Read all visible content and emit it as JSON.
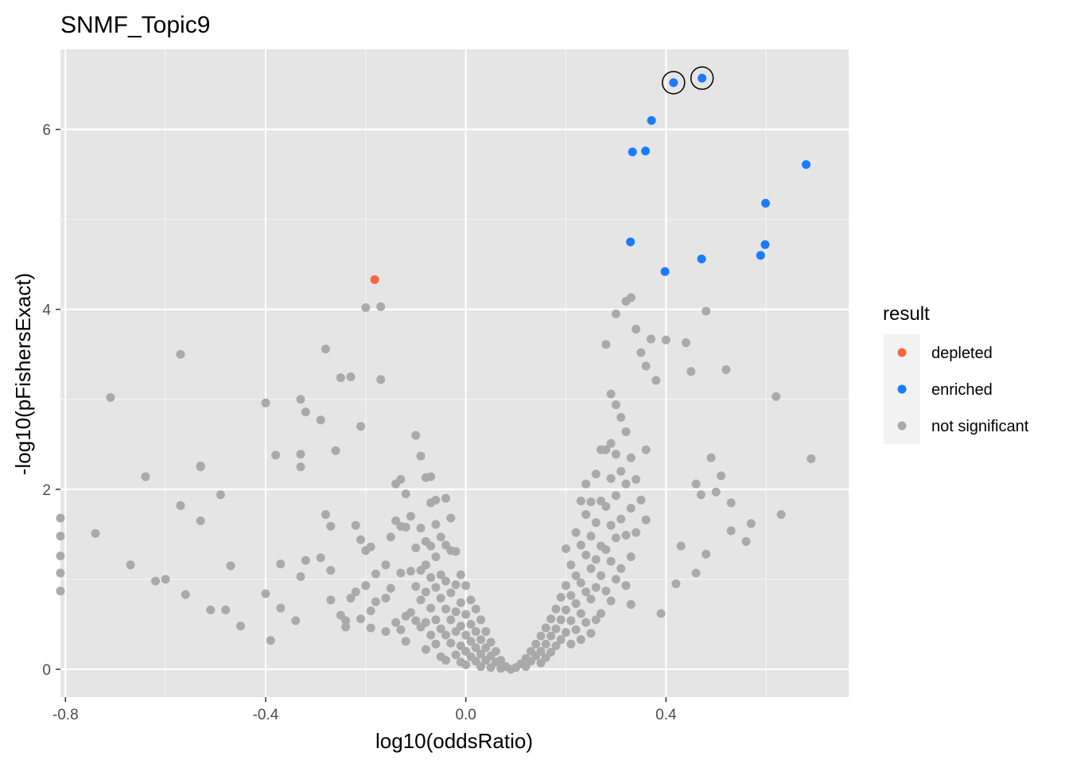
{
  "chart_data": {
    "type": "scatter",
    "title": "SNMF_Topic9",
    "xlabel": "log10(oddsRatio)",
    "ylabel": "-log10(pFishersExact)",
    "xlim": [
      -0.81,
      0.765
    ],
    "ylim": [
      -0.31,
      6.89
    ],
    "x_ticks": [
      -0.8,
      -0.4,
      0.0,
      0.4
    ],
    "x_tick_labels": [
      "-0.8",
      "-0.4",
      "0.0",
      "0.4"
    ],
    "y_ticks": [
      0,
      2,
      4,
      6
    ],
    "y_tick_labels": [
      "0",
      "2",
      "4",
      "6"
    ],
    "grid": true,
    "panel_background": "#e5e5e5",
    "legend": {
      "title": "result",
      "placement": "right",
      "entries": [
        {
          "label": "depleted",
          "color": "#f8663f"
        },
        {
          "label": "enriched",
          "color": "#1a7bff"
        },
        {
          "label": "not significant",
          "color": "#aaaaaa"
        }
      ]
    },
    "series": [
      {
        "name": "not significant",
        "color": "#aaaaaa",
        "points": [
          [
            -0.71,
            3.02
          ],
          [
            -0.57,
            3.5
          ],
          [
            -0.64,
            2.14
          ],
          [
            -0.57,
            1.82
          ],
          [
            -0.74,
            1.51
          ],
          [
            -0.67,
            1.16
          ],
          [
            -0.62,
            0.98
          ],
          [
            -0.6,
            1.0
          ],
          [
            -0.56,
            0.83
          ],
          [
            -0.53,
            2.25
          ],
          [
            -0.53,
            2.26
          ],
          [
            -0.53,
            1.65
          ],
          [
            -0.51,
            0.66
          ],
          [
            -0.48,
            0.66
          ],
          [
            -0.49,
            1.94
          ],
          [
            -0.47,
            1.15
          ],
          [
            -0.45,
            0.48
          ],
          [
            -0.4,
            2.96
          ],
          [
            -0.4,
            0.84
          ],
          [
            -0.39,
            0.32
          ],
          [
            -0.38,
            2.38
          ],
          [
            -0.37,
            1.17
          ],
          [
            -0.37,
            0.68
          ],
          [
            -0.34,
            0.54
          ],
          [
            -0.33,
            2.25
          ],
          [
            -0.33,
            2.39
          ],
          [
            -0.33,
            1.03
          ],
          [
            -0.33,
            3.0
          ],
          [
            -0.32,
            2.86
          ],
          [
            -0.32,
            1.21
          ],
          [
            -0.29,
            2.77
          ],
          [
            -0.29,
            1.24
          ],
          [
            -0.28,
            1.72
          ],
          [
            -0.28,
            3.56
          ],
          [
            -0.27,
            1.59
          ],
          [
            -0.27,
            1.1
          ],
          [
            -0.27,
            0.77
          ],
          [
            -0.26,
            2.43
          ],
          [
            -0.25,
            3.24
          ],
          [
            -0.25,
            0.6
          ],
          [
            -0.24,
            0.54
          ],
          [
            -0.24,
            0.47
          ],
          [
            -0.23,
            3.25
          ],
          [
            -0.23,
            0.79
          ],
          [
            -0.22,
            0.86
          ],
          [
            -0.22,
            1.6
          ],
          [
            -0.21,
            2.7
          ],
          [
            -0.21,
            1.44
          ],
          [
            -0.21,
            0.56
          ],
          [
            -0.2,
            4.02
          ],
          [
            -0.2,
            0.93
          ],
          [
            -0.2,
            1.32
          ],
          [
            -0.19,
            1.36
          ],
          [
            -0.19,
            0.65
          ],
          [
            -0.19,
            0.46
          ],
          [
            -0.18,
            1.06
          ],
          [
            -0.18,
            0.75
          ],
          [
            -0.17,
            4.03
          ],
          [
            -0.17,
            3.22
          ],
          [
            -0.16,
            1.16
          ],
          [
            -0.16,
            0.79
          ],
          [
            -0.16,
            0.42
          ],
          [
            -0.15,
            1.47
          ],
          [
            -0.15,
            0.9
          ],
          [
            -0.14,
            2.06
          ],
          [
            -0.14,
            1.65
          ],
          [
            -0.14,
            0.52
          ],
          [
            -0.13,
            2.11
          ],
          [
            -0.13,
            1.59
          ],
          [
            -0.13,
            1.07
          ],
          [
            -0.13,
            0.44
          ],
          [
            -0.12,
            1.95
          ],
          [
            -0.12,
            1.58
          ],
          [
            -0.12,
            0.59
          ],
          [
            -0.12,
            0.31
          ],
          [
            -0.11,
            1.7
          ],
          [
            -0.11,
            1.09
          ],
          [
            -0.11,
            0.63
          ],
          [
            -0.1,
            2.6
          ],
          [
            -0.1,
            1.35
          ],
          [
            -0.1,
            0.92
          ],
          [
            -0.1,
            0.54
          ],
          [
            -0.09,
            2.37
          ],
          [
            -0.09,
            1.57
          ],
          [
            -0.09,
            1.1
          ],
          [
            -0.09,
            0.77
          ],
          [
            -0.09,
            0.47
          ],
          [
            -0.08,
            2.13
          ],
          [
            -0.08,
            1.42
          ],
          [
            -0.08,
            1.16
          ],
          [
            -0.08,
            0.86
          ],
          [
            -0.08,
            0.52
          ],
          [
            -0.08,
            0.22
          ],
          [
            -0.07,
            2.14
          ],
          [
            -0.07,
            1.85
          ],
          [
            -0.07,
            1.37
          ],
          [
            -0.07,
            1.02
          ],
          [
            -0.07,
            0.68
          ],
          [
            -0.07,
            0.38
          ],
          [
            -0.06,
            1.88
          ],
          [
            -0.06,
            1.61
          ],
          [
            -0.06,
            1.25
          ],
          [
            -0.06,
            0.91
          ],
          [
            -0.06,
            0.55
          ],
          [
            -0.06,
            0.28
          ],
          [
            -0.05,
            1.47
          ],
          [
            -0.05,
            1.05
          ],
          [
            -0.05,
            0.79
          ],
          [
            -0.05,
            0.45
          ],
          [
            -0.05,
            0.14
          ],
          [
            -0.04,
            1.9
          ],
          [
            -0.04,
            1.38
          ],
          [
            -0.04,
            0.98
          ],
          [
            -0.04,
            0.67
          ],
          [
            -0.04,
            0.38
          ],
          [
            -0.04,
            0.1
          ],
          [
            -0.03,
            1.68
          ],
          [
            -0.03,
            1.32
          ],
          [
            -0.03,
            0.85
          ],
          [
            -0.03,
            0.55
          ],
          [
            -0.03,
            0.29
          ],
          [
            -0.02,
            1.31
          ],
          [
            -0.02,
            0.94
          ],
          [
            -0.02,
            0.64
          ],
          [
            -0.02,
            0.42
          ],
          [
            -0.02,
            0.16
          ],
          [
            -0.01,
            1.05
          ],
          [
            -0.01,
            0.74
          ],
          [
            -0.01,
            0.48
          ],
          [
            -0.01,
            0.26
          ],
          [
            -0.01,
            0.08
          ],
          [
            0.0,
            0.93
          ],
          [
            0.0,
            0.61
          ],
          [
            0.0,
            0.38
          ],
          [
            0.0,
            0.2
          ],
          [
            0.0,
            0.05
          ],
          [
            0.01,
            0.77
          ],
          [
            0.01,
            0.5
          ],
          [
            0.01,
            0.31
          ],
          [
            0.01,
            0.14
          ],
          [
            0.02,
            0.67
          ],
          [
            0.02,
            0.42
          ],
          [
            0.02,
            0.24
          ],
          [
            0.02,
            0.09
          ],
          [
            0.03,
            0.55
          ],
          [
            0.03,
            0.33
          ],
          [
            0.03,
            0.17
          ],
          [
            0.03,
            0.03
          ],
          [
            0.04,
            0.42
          ],
          [
            0.04,
            0.24
          ],
          [
            0.04,
            0.1
          ],
          [
            0.05,
            0.3
          ],
          [
            0.05,
            0.15
          ],
          [
            0.05,
            0.02
          ],
          [
            0.06,
            0.2
          ],
          [
            0.06,
            0.08
          ],
          [
            0.07,
            0.1
          ],
          [
            0.07,
            0.01
          ],
          [
            0.08,
            0.03
          ],
          [
            0.09,
            0.0
          ],
          [
            0.1,
            0.02
          ],
          [
            0.11,
            0.06
          ],
          [
            0.12,
            0.12
          ],
          [
            0.12,
            0.03
          ],
          [
            0.13,
            0.2
          ],
          [
            0.13,
            0.09
          ],
          [
            0.14,
            0.28
          ],
          [
            0.14,
            0.15
          ],
          [
            0.15,
            0.37
          ],
          [
            0.15,
            0.2
          ],
          [
            0.15,
            0.07
          ],
          [
            0.16,
            0.46
          ],
          [
            0.16,
            0.28
          ],
          [
            0.16,
            0.13
          ],
          [
            0.17,
            0.56
          ],
          [
            0.17,
            0.37
          ],
          [
            0.17,
            0.19
          ],
          [
            0.18,
            0.67
          ],
          [
            0.18,
            0.45
          ],
          [
            0.18,
            0.26
          ],
          [
            0.19,
            0.8
          ],
          [
            0.19,
            0.55
          ],
          [
            0.19,
            0.33
          ],
          [
            0.2,
            1.34
          ],
          [
            0.2,
            0.93
          ],
          [
            0.2,
            0.66
          ],
          [
            0.2,
            0.41
          ],
          [
            0.21,
            1.16
          ],
          [
            0.21,
            0.82
          ],
          [
            0.21,
            0.54
          ],
          [
            0.21,
            0.28
          ],
          [
            0.22,
            1.52
          ],
          [
            0.22,
            1.04
          ],
          [
            0.22,
            0.73
          ],
          [
            0.22,
            0.44
          ],
          [
            0.23,
            1.87
          ],
          [
            0.23,
            1.38
          ],
          [
            0.23,
            0.96
          ],
          [
            0.23,
            0.62
          ],
          [
            0.23,
            0.33
          ],
          [
            0.24,
            2.06
          ],
          [
            0.24,
            1.72
          ],
          [
            0.24,
            1.27
          ],
          [
            0.24,
            0.86
          ],
          [
            0.24,
            0.52
          ],
          [
            0.25,
            1.86
          ],
          [
            0.25,
            1.48
          ],
          [
            0.25,
            1.12
          ],
          [
            0.25,
            0.78
          ],
          [
            0.25,
            0.4
          ],
          [
            0.26,
            2.17
          ],
          [
            0.26,
            1.63
          ],
          [
            0.26,
            1.22
          ],
          [
            0.26,
            0.91
          ],
          [
            0.26,
            0.55
          ],
          [
            0.27,
            2.44
          ],
          [
            0.27,
            1.87
          ],
          [
            0.27,
            1.37
          ],
          [
            0.27,
            1.04
          ],
          [
            0.27,
            0.62
          ],
          [
            0.28,
            3.61
          ],
          [
            0.28,
            2.44
          ],
          [
            0.28,
            1.81
          ],
          [
            0.28,
            1.33
          ],
          [
            0.28,
            0.87
          ],
          [
            0.29,
            3.06
          ],
          [
            0.29,
            2.51
          ],
          [
            0.29,
            2.12
          ],
          [
            0.29,
            1.6
          ],
          [
            0.29,
            1.2
          ],
          [
            0.29,
            0.76
          ],
          [
            0.3,
            3.95
          ],
          [
            0.3,
            2.94
          ],
          [
            0.3,
            2.39
          ],
          [
            0.3,
            1.93
          ],
          [
            0.3,
            1.46
          ],
          [
            0.3,
            1.0
          ],
          [
            0.31,
            2.8
          ],
          [
            0.31,
            2.2
          ],
          [
            0.31,
            1.67
          ],
          [
            0.31,
            1.12
          ],
          [
            0.32,
            4.09
          ],
          [
            0.32,
            2.64
          ],
          [
            0.32,
            2.06
          ],
          [
            0.32,
            1.49
          ],
          [
            0.32,
            0.93
          ],
          [
            0.33,
            4.13
          ],
          [
            0.33,
            2.35
          ],
          [
            0.33,
            1.79
          ],
          [
            0.33,
            1.25
          ],
          [
            0.33,
            0.72
          ],
          [
            0.34,
            3.78
          ],
          [
            0.34,
            2.11
          ],
          [
            0.34,
            1.52
          ],
          [
            0.35,
            3.52
          ],
          [
            0.35,
            1.88
          ],
          [
            0.36,
            3.37
          ],
          [
            0.36,
            2.44
          ],
          [
            0.36,
            1.66
          ],
          [
            0.37,
            3.67
          ],
          [
            0.38,
            3.21
          ],
          [
            0.39,
            0.62
          ],
          [
            0.4,
            3.66
          ],
          [
            0.42,
            0.95
          ],
          [
            0.43,
            1.37
          ],
          [
            0.44,
            3.63
          ],
          [
            0.45,
            3.31
          ],
          [
            0.46,
            2.06
          ],
          [
            0.46,
            1.07
          ],
          [
            0.47,
            1.94
          ],
          [
            0.48,
            3.98
          ],
          [
            0.48,
            1.28
          ],
          [
            0.49,
            2.35
          ],
          [
            0.5,
            1.97
          ],
          [
            0.51,
            2.15
          ],
          [
            0.52,
            3.33
          ],
          [
            0.53,
            1.85
          ],
          [
            0.53,
            1.54
          ],
          [
            0.56,
            1.42
          ],
          [
            0.57,
            1.62
          ],
          [
            0.62,
            3.03
          ],
          [
            0.63,
            1.72
          ],
          [
            0.69,
            2.34
          ],
          [
            -0.81,
            1.68
          ],
          [
            -0.81,
            1.48
          ],
          [
            -0.81,
            1.26
          ],
          [
            -0.81,
            1.07
          ],
          [
            -0.81,
            0.87
          ]
        ]
      },
      {
        "name": "enriched",
        "color": "#1a7bff",
        "points": [
          [
            0.415,
            6.52
          ],
          [
            0.472,
            6.57
          ],
          [
            0.371,
            6.1
          ],
          [
            0.333,
            5.75
          ],
          [
            0.359,
            5.76
          ],
          [
            0.68,
            5.61
          ],
          [
            0.599,
            5.18
          ],
          [
            0.598,
            4.72
          ],
          [
            0.329,
            4.75
          ],
          [
            0.589,
            4.6
          ],
          [
            0.471,
            4.56
          ],
          [
            0.398,
            4.42
          ]
        ]
      },
      {
        "name": "depleted",
        "color": "#f8663f",
        "points": [
          [
            -0.182,
            4.33
          ]
        ]
      }
    ],
    "annotations": [
      {
        "type": "circle",
        "x": 0.415,
        "y": 6.52
      },
      {
        "type": "circle",
        "x": 0.472,
        "y": 6.57
      }
    ]
  }
}
